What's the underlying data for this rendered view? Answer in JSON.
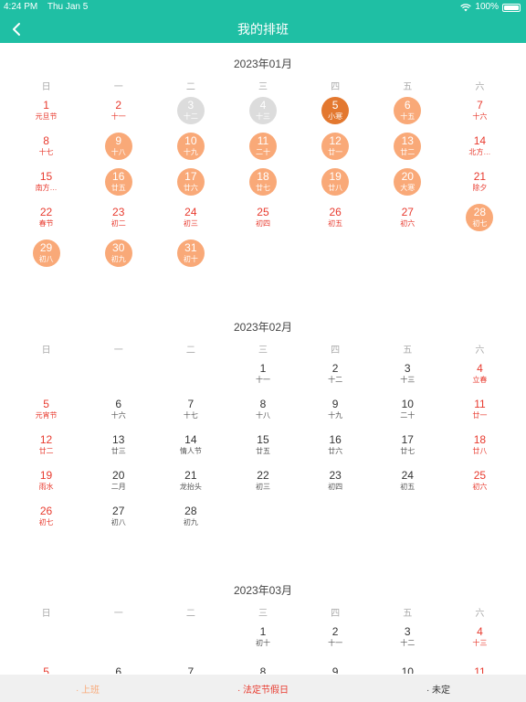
{
  "status": {
    "time": "4:24 PM",
    "date": "Thu Jan 5",
    "battery": "100%"
  },
  "nav": {
    "title": "我的排班"
  },
  "weekdays": [
    "日",
    "一",
    "二",
    "三",
    "四",
    "五",
    "六"
  ],
  "months": [
    {
      "title": "2023年01月",
      "days": [
        {
          "d": "1",
          "l": "元旦节",
          "red": true
        },
        {
          "d": "2",
          "l": "十一",
          "red": true
        },
        {
          "d": "3",
          "l": "十二",
          "s": "grey"
        },
        {
          "d": "4",
          "l": "十三",
          "s": "grey"
        },
        {
          "d": "5",
          "l": "小寒",
          "s": "dark"
        },
        {
          "d": "6",
          "l": "十五",
          "s": "orange"
        },
        {
          "d": "7",
          "l": "十六",
          "red": true
        },
        {
          "d": "8",
          "l": "十七",
          "red": true
        },
        {
          "d": "9",
          "l": "十八",
          "s": "orange"
        },
        {
          "d": "10",
          "l": "十九",
          "s": "orange"
        },
        {
          "d": "11",
          "l": "二十",
          "s": "orange"
        },
        {
          "d": "12",
          "l": "廿一",
          "s": "orange"
        },
        {
          "d": "13",
          "l": "廿二",
          "s": "orange"
        },
        {
          "d": "14",
          "l": "北方…",
          "red": true
        },
        {
          "d": "15",
          "l": "南方…",
          "red": true
        },
        {
          "d": "16",
          "l": "廿五",
          "s": "orange"
        },
        {
          "d": "17",
          "l": "廿六",
          "s": "orange"
        },
        {
          "d": "18",
          "l": "廿七",
          "s": "orange"
        },
        {
          "d": "19",
          "l": "廿八",
          "s": "orange"
        },
        {
          "d": "20",
          "l": "大寒",
          "s": "orange"
        },
        {
          "d": "21",
          "l": "除夕",
          "red": true
        },
        {
          "d": "22",
          "l": "春节",
          "red": true
        },
        {
          "d": "23",
          "l": "初二",
          "red": true
        },
        {
          "d": "24",
          "l": "初三",
          "red": true
        },
        {
          "d": "25",
          "l": "初四",
          "red": true
        },
        {
          "d": "26",
          "l": "初五",
          "red": true
        },
        {
          "d": "27",
          "l": "初六",
          "red": true
        },
        {
          "d": "28",
          "l": "初七",
          "red": true,
          "s": "orange"
        },
        {
          "d": "29",
          "l": "初八",
          "red": true,
          "s": "orange"
        },
        {
          "d": "30",
          "l": "初九",
          "s": "orange"
        },
        {
          "d": "31",
          "l": "初十",
          "s": "orange"
        }
      ]
    },
    {
      "title": "2023年02月",
      "days": [
        {
          "d": "1",
          "l": "十一"
        },
        {
          "d": "2",
          "l": "十二"
        },
        {
          "d": "3",
          "l": "十三"
        },
        {
          "d": "4",
          "l": "立春",
          "red": true
        },
        {
          "d": "5",
          "l": "元宵节",
          "red": true
        },
        {
          "d": "6",
          "l": "十六"
        },
        {
          "d": "7",
          "l": "十七"
        },
        {
          "d": "8",
          "l": "十八"
        },
        {
          "d": "9",
          "l": "十九"
        },
        {
          "d": "10",
          "l": "二十"
        },
        {
          "d": "11",
          "l": "廿一",
          "red": true
        },
        {
          "d": "12",
          "l": "廿二",
          "red": true
        },
        {
          "d": "13",
          "l": "廿三"
        },
        {
          "d": "14",
          "l": "情人节"
        },
        {
          "d": "15",
          "l": "廿五"
        },
        {
          "d": "16",
          "l": "廿六"
        },
        {
          "d": "17",
          "l": "廿七"
        },
        {
          "d": "18",
          "l": "廿八",
          "red": true
        },
        {
          "d": "19",
          "l": "雨水",
          "red": true
        },
        {
          "d": "20",
          "l": "二月"
        },
        {
          "d": "21",
          "l": "龙抬头"
        },
        {
          "d": "22",
          "l": "初三"
        },
        {
          "d": "23",
          "l": "初四"
        },
        {
          "d": "24",
          "l": "初五"
        },
        {
          "d": "25",
          "l": "初六",
          "red": true
        },
        {
          "d": "26",
          "l": "初七",
          "red": true
        },
        {
          "d": "27",
          "l": "初八"
        },
        {
          "d": "28",
          "l": "初九"
        }
      ]
    },
    {
      "title": "2023年03月",
      "days": [
        {
          "d": "1",
          "l": "初十"
        },
        {
          "d": "2",
          "l": "十一"
        },
        {
          "d": "3",
          "l": "十二"
        },
        {
          "d": "4",
          "l": "十三",
          "red": true
        },
        {
          "d": "5",
          "l": "",
          "red": true
        },
        {
          "d": "6",
          "l": ""
        },
        {
          "d": "7",
          "l": ""
        },
        {
          "d": "8",
          "l": ""
        },
        {
          "d": "9",
          "l": ""
        },
        {
          "d": "10",
          "l": ""
        },
        {
          "d": "11",
          "l": "",
          "red": true
        }
      ]
    }
  ],
  "legend": {
    "on_duty": "· 上班",
    "holiday": "· 法定节假日",
    "undecided": "· 未定"
  },
  "colors": {
    "header": "#1fbfa4",
    "shift": "#f9a978",
    "today": "#e3782f",
    "past": "#dcdcdc",
    "holiday_text": "#e83a2e"
  }
}
